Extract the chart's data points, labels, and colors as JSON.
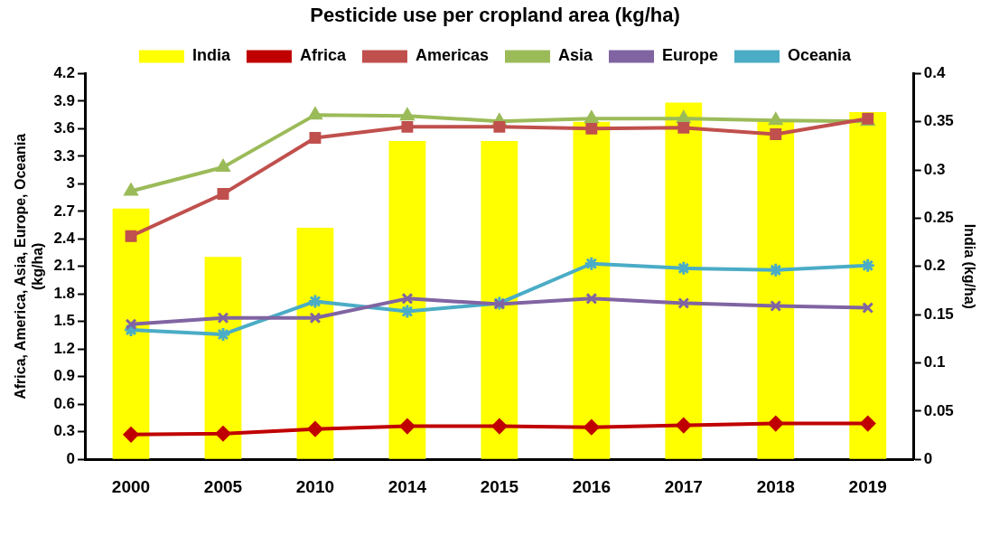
{
  "chart_data": {
    "type": "line",
    "title": "Pesticide use per cropland area (kg/ha)",
    "ylabel": "Africa, America, Asia, Europe, Oceania\n(kg/ha)",
    "y2label": "India (kg/ha)",
    "categories": [
      "2000",
      "2005",
      "2010",
      "2014",
      "2015",
      "2016",
      "2017",
      "2018",
      "2019"
    ],
    "ylim": [
      0,
      4.2
    ],
    "yticks": [
      0,
      0.3,
      0.6,
      0.9,
      1.2,
      1.5,
      1.8,
      2.1,
      2.4,
      2.7,
      3,
      3.3,
      3.6,
      3.9,
      4.2
    ],
    "y2lim": [
      0,
      0.4
    ],
    "y2ticks": [
      0,
      0.05,
      0.1,
      0.15,
      0.2,
      0.25,
      0.3,
      0.35,
      0.4
    ],
    "grid": false,
    "legend": "top",
    "series": [
      {
        "name": "India",
        "type": "bar",
        "axis": "y2",
        "color": "#ffff00",
        "values": [
          0.26,
          0.21,
          0.24,
          0.33,
          0.33,
          0.35,
          0.37,
          0.35,
          0.36
        ]
      },
      {
        "name": "Africa",
        "color": "#c00000",
        "marker": "diamond",
        "values": [
          0.27,
          0.28,
          0.33,
          0.36,
          0.36,
          0.35,
          0.37,
          0.39,
          0.39
        ]
      },
      {
        "name": "Americas",
        "color": "#c0504d",
        "marker": "square",
        "values": [
          2.43,
          2.89,
          3.5,
          3.62,
          3.62,
          3.6,
          3.61,
          3.54,
          3.71
        ]
      },
      {
        "name": "Asia",
        "color": "#9bbb59",
        "marker": "triangle",
        "values": [
          2.92,
          3.18,
          3.75,
          3.74,
          3.68,
          3.71,
          3.71,
          3.69,
          3.68
        ]
      },
      {
        "name": "Europe",
        "color": "#8064a2",
        "marker": "cross",
        "values": [
          1.47,
          1.54,
          1.54,
          1.75,
          1.69,
          1.75,
          1.7,
          1.67,
          1.65
        ]
      },
      {
        "name": "Oceania",
        "color": "#4bacc6",
        "marker": "cross",
        "values": [
          1.41,
          1.36,
          1.72,
          1.61,
          1.7,
          2.13,
          2.08,
          2.06,
          2.11
        ]
      }
    ]
  }
}
